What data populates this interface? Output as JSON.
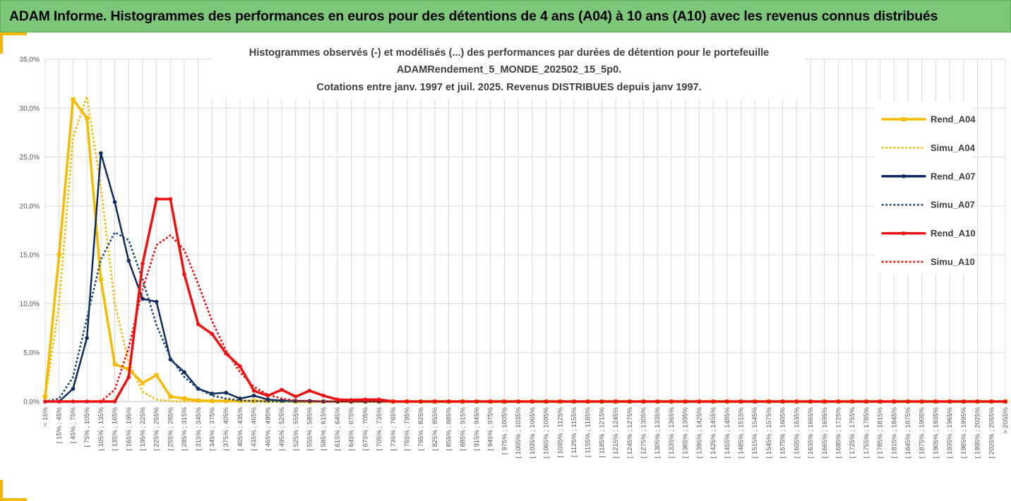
{
  "header": {
    "title": "ADAM Informe. Histogrammes des performances en euros pour des détentions de 4 ans (A04) à 10 ans (A10) avec les revenus connus distribués"
  },
  "colors": {
    "header_bg": "#7dc77b",
    "accent": "#f5b800",
    "A04": "#f5bb00",
    "A07": "#0f2a5e",
    "A10": "#ee1111",
    "grid": "#d9d9d9"
  },
  "chart_data": {
    "type": "line",
    "title_lines": [
      "Histogrammes observés (-) et modélisés (...) des performances par durées de détention pour le portefeuille",
      "ADAMRendement_5_MONDE_202502_15_5p0.",
      "Cotations entre janv. 1997 et juil. 2025. Revenus DISTRIBUES depuis janv 1997."
    ],
    "ylim": [
      0,
      35
    ],
    "y_ticks": [
      "0,0%",
      "5,0%",
      "10,0%",
      "15,0%",
      "20,0%",
      "25,0%",
      "30,0%",
      "35,0%"
    ],
    "grid": true,
    "legend_position": "right",
    "categories": [
      "< 15%",
      "[ 15% ; 45%",
      "[ 45% ; 75%",
      "[ 75% ; 105%",
      "[ 105% ; 135%",
      "[ 135% ; 165%",
      "[ 165% ; 195%",
      "[ 195% ; 225%",
      "[ 225% ; 255%",
      "[ 255% ; 285%",
      "[ 285% ; 315%",
      "[ 315% ; 345%",
      "[ 345% ; 375%",
      "[ 375% ; 405%",
      "[ 405% ; 435%",
      "[ 435% ; 465%",
      "[ 465% ; 495%",
      "[ 495% ; 525%",
      "[ 525% ; 555%",
      "[ 555% ; 585%",
      "[ 585% ; 615%",
      "[ 615% ; 645%",
      "[ 645% ; 675%",
      "[ 675% ; 705%",
      "[ 705% ; 735%",
      "[ 735% ; 765%",
      "[ 765% ; 795%",
      "[ 795% ; 825%",
      "[ 825% ; 855%",
      "[ 855% ; 885%",
      "[ 885% ; 915%",
      "[ 915% ; 945%",
      "[ 945% ; 975%",
      "[ 975% ; 1005%",
      "[ 1005% ; 1035%",
      "[ 1035% ; 1065%",
      "[ 1065% ; 1095%",
      "[ 1095% ; 1125%",
      "[ 1125% ; 1155%",
      "[ 1155% ; 1185%",
      "[ 1185% ; 1215%",
      "[ 1215% ; 1245%",
      "[ 1245% ; 1275%",
      "[ 1275% ; 1305%",
      "[ 1305% ; 1335%",
      "[ 1335% ; 1365%",
      "[ 1365% ; 1395%",
      "[ 1395% ; 1425%",
      "[ 1425% ; 1455%",
      "[ 1455% ; 1485%",
      "[ 1485% ; 1515%",
      "[ 1515% ; 1545%",
      "[ 1545% ; 1575%",
      "[ 1575% ; 1605%",
      "[ 1605% ; 1635%",
      "[ 1635% ; 1665%",
      "[ 1665% ; 1695%",
      "[ 1695% ; 1725%",
      "[ 1725% ; 1755%",
      "[ 1755% ; 1785%",
      "[ 1785% ; 1815%",
      "[ 1815% ; 1845%",
      "[ 1845% ; 1875%",
      "[ 1875% ; 1905%",
      "[ 1905% ; 1935%",
      "[ 1935% ; 1965%",
      "[ 1965% ; 1995%",
      "[ 1995% ; 2025%",
      "[ 2025% ; 2055%",
      "> 2055%"
    ],
    "series": [
      {
        "name": "Rend_A04",
        "style": "solid",
        "marker": "square",
        "color": "#f5bb00",
        "values": [
          0.5,
          15.0,
          30.9,
          29.0,
          12.5,
          3.8,
          3.3,
          1.9,
          2.7,
          0.5,
          0.3,
          0.1,
          0.05,
          0.05,
          0.05,
          0.05,
          0.05,
          0.05,
          0,
          0,
          0,
          0,
          0,
          0,
          0,
          0,
          0,
          0,
          0,
          0,
          0,
          0,
          0,
          0,
          0,
          0,
          0,
          0,
          0,
          0,
          0,
          0,
          0,
          0,
          0,
          0,
          0,
          0,
          0,
          0,
          0,
          0,
          0,
          0,
          0,
          0,
          0,
          0,
          0,
          0,
          0,
          0,
          0,
          0,
          0,
          0,
          0,
          0,
          0,
          0
        ]
      },
      {
        "name": "Simu_A04",
        "style": "dotted",
        "color": "#f5bb00",
        "values": [
          0.3,
          10.0,
          27.0,
          31.2,
          22.0,
          10.0,
          4.0,
          1.0,
          0.2,
          0.05,
          0,
          0,
          0,
          0,
          0,
          0,
          0,
          0,
          0,
          0,
          0,
          0,
          0,
          0,
          0,
          0,
          0,
          0,
          0,
          0,
          0,
          0,
          0,
          0,
          0,
          0,
          0,
          0,
          0,
          0,
          0,
          0,
          0,
          0,
          0,
          0,
          0,
          0,
          0,
          0,
          0,
          0,
          0,
          0,
          0,
          0,
          0,
          0,
          0,
          0,
          0,
          0,
          0,
          0,
          0,
          0,
          0,
          0,
          0,
          0
        ]
      },
      {
        "name": "Rend_A07",
        "style": "solid",
        "marker": "circle",
        "color": "#0f2a5e",
        "values": [
          0,
          0,
          1.3,
          6.5,
          25.4,
          20.4,
          14.4,
          10.5,
          10.2,
          4.3,
          3.0,
          1.3,
          0.8,
          0.9,
          0.3,
          0.6,
          0.2,
          0.1,
          0.05,
          0.05,
          0,
          0,
          0,
          0,
          0,
          0,
          0,
          0,
          0,
          0,
          0,
          0,
          0,
          0,
          0,
          0,
          0,
          0,
          0,
          0,
          0,
          0,
          0,
          0,
          0,
          0,
          0,
          0,
          0,
          0,
          0,
          0,
          0,
          0,
          0,
          0,
          0,
          0,
          0,
          0,
          0,
          0,
          0,
          0,
          0,
          0,
          0,
          0,
          0,
          0
        ]
      },
      {
        "name": "Simu_A07",
        "style": "dotted",
        "color": "#1f4e79",
        "values": [
          0,
          0.3,
          2.5,
          8.5,
          14.5,
          17.3,
          16.5,
          12.5,
          7.8,
          4.5,
          2.5,
          1.3,
          0.6,
          0.3,
          0.1,
          0.05,
          0,
          0,
          0,
          0,
          0,
          0,
          0,
          0,
          0,
          0,
          0,
          0,
          0,
          0,
          0,
          0,
          0,
          0,
          0,
          0,
          0,
          0,
          0,
          0,
          0,
          0,
          0,
          0,
          0,
          0,
          0,
          0,
          0,
          0,
          0,
          0,
          0,
          0,
          0,
          0,
          0,
          0,
          0,
          0,
          0,
          0,
          0,
          0,
          0,
          0,
          0,
          0,
          0,
          0
        ]
      },
      {
        "name": "Rend_A10",
        "style": "solid",
        "marker": "circle",
        "color": "#ee1111",
        "values": [
          0,
          0,
          0,
          0,
          0,
          0,
          2.5,
          14.1,
          20.7,
          20.7,
          13.0,
          7.9,
          6.9,
          4.9,
          3.6,
          1.1,
          0.6,
          1.2,
          0.5,
          1.1,
          0.6,
          0.2,
          0.15,
          0.2,
          0.2,
          0,
          0,
          0,
          0,
          0,
          0,
          0,
          0,
          0,
          0,
          0,
          0,
          0,
          0,
          0,
          0,
          0,
          0,
          0,
          0,
          0,
          0,
          0,
          0,
          0,
          0,
          0,
          0,
          0,
          0,
          0,
          0,
          0,
          0,
          0,
          0,
          0,
          0,
          0,
          0,
          0,
          0,
          0,
          0,
          0
        ]
      },
      {
        "name": "Simu_A10",
        "style": "dotted",
        "color": "#ee1111",
        "values": [
          0,
          0,
          0,
          0,
          0,
          1.2,
          5.5,
          11.5,
          16.0,
          17.0,
          15.5,
          12.0,
          8.2,
          5.2,
          3.0,
          1.5,
          0.7,
          0.3,
          0.1,
          0.05,
          0,
          0,
          0,
          0,
          0,
          0,
          0,
          0,
          0,
          0,
          0,
          0,
          0,
          0,
          0,
          0,
          0,
          0,
          0,
          0,
          0,
          0,
          0,
          0,
          0,
          0,
          0,
          0,
          0,
          0,
          0,
          0,
          0,
          0,
          0,
          0,
          0,
          0,
          0,
          0,
          0,
          0,
          0,
          0,
          0,
          0,
          0,
          0,
          0,
          0
        ]
      }
    ]
  }
}
